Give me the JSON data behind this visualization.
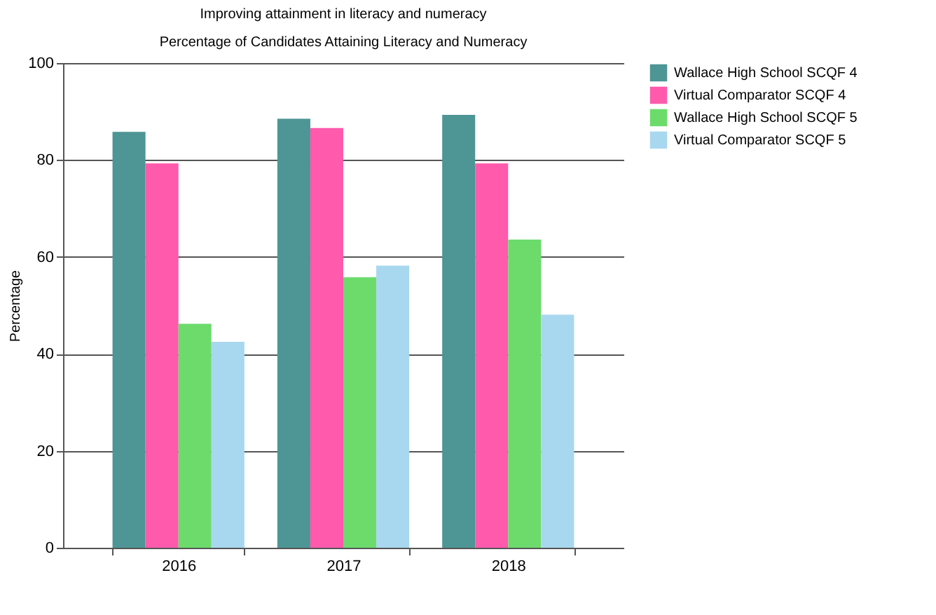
{
  "chart_data": {
    "type": "bar",
    "title": "Improving attainment in literacy and numeracy",
    "subtitle": "Percentage of Candidates Attaining Literacy and Numeracy",
    "ylabel": "Percentage",
    "categories": [
      "2016",
      "2017",
      "2018"
    ],
    "series": [
      {
        "name": "Wallace High School SCQF 4",
        "color": "#4e9595",
        "values": [
          85.8,
          88.5,
          89.3
        ]
      },
      {
        "name": "Virtual Comparator SCQF 4",
        "color": "#ff5aac",
        "values": [
          79.3,
          86.6,
          79.3
        ]
      },
      {
        "name": "Wallace High School SCQF 5",
        "color": "#6cdb6c",
        "values": [
          46.2,
          55.8,
          63.6
        ]
      },
      {
        "name": "Virtual Comparator SCQF 5",
        "color": "#a8d8ef",
        "values": [
          42.5,
          58.2,
          48.1
        ]
      }
    ],
    "ylim": [
      0,
      100
    ],
    "yticks": [
      0,
      20,
      40,
      60,
      80,
      100
    ],
    "grid": "y",
    "legend": "right"
  }
}
